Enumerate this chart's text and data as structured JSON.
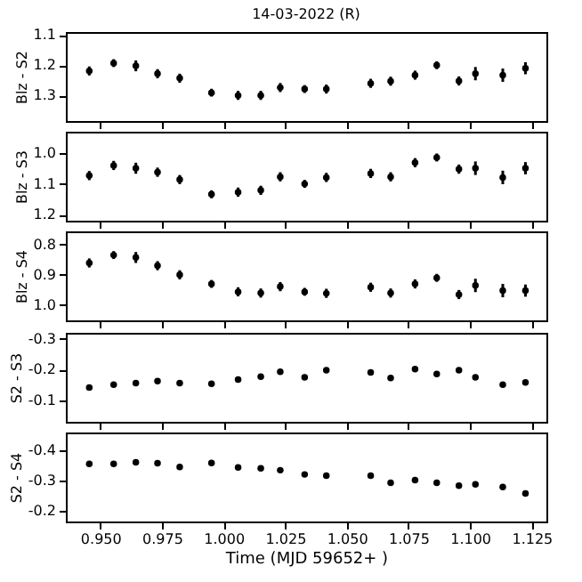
{
  "chart_data": [
    {
      "type": "scatter",
      "title": "14-03-2022  (R)",
      "ylabel": "Blz - S2",
      "marker": "circle",
      "grid": false,
      "tick_labels": "y",
      "x": [
        0.9455,
        0.9554,
        0.9644,
        0.9732,
        0.9822,
        0.9951,
        1.0059,
        1.0151,
        1.023,
        1.0329,
        1.0417,
        1.0597,
        1.0678,
        1.0777,
        1.0865,
        1.0955,
        1.1022,
        1.1133,
        1.1225
      ],
      "xlim": [
        0.936,
        1.131
      ],
      "xticks": [
        {
          "value": 0.95,
          "label": null
        },
        {
          "value": 0.975,
          "label": null
        },
        {
          "value": 1.0,
          "label": null
        },
        {
          "value": 1.025,
          "label": null
        },
        {
          "value": 1.05,
          "label": null
        },
        {
          "value": 1.075,
          "label": null
        },
        {
          "value": 1.1,
          "label": null
        },
        {
          "value": 1.125,
          "label": null
        }
      ],
      "ylim": [
        1.385,
        1.09
      ],
      "yticks": [
        1.1,
        1.2,
        1.3
      ],
      "series": [
        {
          "color": "#000000",
          "values": [
            1.219,
            1.193,
            1.202,
            1.228,
            1.243,
            1.291,
            1.3,
            1.3,
            1.274,
            1.279,
            1.279,
            1.26,
            1.253,
            1.233,
            1.2,
            1.252,
            1.228,
            1.233,
            1.21
          ],
          "errors": [
            0.015,
            0.013,
            0.018,
            0.015,
            0.015,
            0.013,
            0.015,
            0.015,
            0.015,
            0.013,
            0.015,
            0.015,
            0.015,
            0.015,
            0.013,
            0.015,
            0.022,
            0.022,
            0.02
          ]
        }
      ]
    },
    {
      "type": "scatter",
      "ylabel": "Blz - S3",
      "marker": "circle",
      "grid": false,
      "tick_labels": "y",
      "x": [
        0.9455,
        0.9554,
        0.9644,
        0.9732,
        0.9822,
        0.9951,
        1.0059,
        1.0151,
        1.023,
        1.0329,
        1.0417,
        1.0597,
        1.0678,
        1.0777,
        1.0865,
        1.0955,
        1.1022,
        1.1133,
        1.1225
      ],
      "xlim": [
        0.936,
        1.131
      ],
      "xticks": [
        {
          "value": 0.95,
          "label": null
        },
        {
          "value": 0.975,
          "label": null
        },
        {
          "value": 1.0,
          "label": null
        },
        {
          "value": 1.025,
          "label": null
        },
        {
          "value": 1.05,
          "label": null
        },
        {
          "value": 1.075,
          "label": null
        },
        {
          "value": 1.1,
          "label": null
        },
        {
          "value": 1.125,
          "label": null
        }
      ],
      "ylim": [
        1.22,
        0.93
      ],
      "yticks": [
        {
          "value": 1.0,
          "label": "1.0"
        },
        1.1,
        1.2
      ],
      "series": [
        {
          "color": "#000000",
          "values": [
            1.073,
            1.04,
            1.049,
            1.062,
            1.086,
            1.134,
            1.127,
            1.121,
            1.077,
            1.1,
            1.079,
            1.066,
            1.077,
            1.031,
            1.014,
            1.052,
            1.049,
            1.079,
            1.049
          ],
          "errors": [
            0.015,
            0.015,
            0.018,
            0.015,
            0.015,
            0.013,
            0.015,
            0.015,
            0.015,
            0.013,
            0.015,
            0.015,
            0.015,
            0.015,
            0.013,
            0.015,
            0.022,
            0.022,
            0.02
          ]
        }
      ]
    },
    {
      "type": "scatter",
      "ylabel": "Blz - S4",
      "marker": "circle",
      "grid": false,
      "tick_labels": "y",
      "x": [
        0.9455,
        0.9554,
        0.9644,
        0.9732,
        0.9822,
        0.9951,
        1.0059,
        1.0151,
        1.023,
        1.0329,
        1.0417,
        1.0597,
        1.0678,
        1.0777,
        1.0865,
        1.0955,
        1.1022,
        1.1133,
        1.1225
      ],
      "xlim": [
        0.936,
        1.131
      ],
      "xticks": [
        {
          "value": 0.95,
          "label": null
        },
        {
          "value": 0.975,
          "label": null
        },
        {
          "value": 1.0,
          "label": null
        },
        {
          "value": 1.025,
          "label": null
        },
        {
          "value": 1.05,
          "label": null
        },
        {
          "value": 1.075,
          "label": null
        },
        {
          "value": 1.1,
          "label": null
        },
        {
          "value": 1.125,
          "label": null
        }
      ],
      "ylim": [
        1.05,
        0.757
      ],
      "yticks": [
        0.8,
        0.9,
        {
          "value": 1.0,
          "label": "1.0"
        }
      ],
      "series": [
        {
          "color": "#000000",
          "values": [
            0.861,
            0.835,
            0.843,
            0.87,
            0.9,
            0.93,
            0.956,
            0.96,
            0.939,
            0.956,
            0.961,
            0.941,
            0.96,
            0.93,
            0.91,
            0.965,
            0.935,
            0.952,
            0.952
          ],
          "errors": [
            0.015,
            0.013,
            0.018,
            0.015,
            0.015,
            0.013,
            0.015,
            0.015,
            0.015,
            0.013,
            0.015,
            0.015,
            0.015,
            0.015,
            0.013,
            0.015,
            0.022,
            0.022,
            0.02
          ]
        }
      ]
    },
    {
      "type": "scatter",
      "ylabel": "S2 - S3",
      "marker": "circle",
      "grid": false,
      "tick_labels": "y",
      "x": [
        0.9455,
        0.9554,
        0.9644,
        0.9732,
        0.9822,
        0.9951,
        1.0059,
        1.0151,
        1.023,
        1.0329,
        1.0417,
        1.0597,
        1.0678,
        1.0777,
        1.0865,
        1.0955,
        1.1022,
        1.1133,
        1.1225
      ],
      "xlim": [
        0.936,
        1.131
      ],
      "xticks": [
        {
          "value": 0.95,
          "label": null
        },
        {
          "value": 0.975,
          "label": null
        },
        {
          "value": 1.0,
          "label": null
        },
        {
          "value": 1.025,
          "label": null
        },
        {
          "value": 1.05,
          "label": null
        },
        {
          "value": 1.075,
          "label": null
        },
        {
          "value": 1.1,
          "label": null
        },
        {
          "value": 1.125,
          "label": null
        }
      ],
      "ylim": [
        -0.03,
        -0.32
      ],
      "yticks": [
        -0.3,
        -0.2,
        -0.1
      ],
      "series": [
        {
          "color": "#000000",
          "values": [
            -0.142,
            -0.151,
            -0.156,
            -0.163,
            -0.156,
            -0.154,
            -0.168,
            -0.177,
            -0.193,
            -0.175,
            -0.198,
            -0.191,
            -0.173,
            -0.202,
            -0.186,
            -0.198,
            -0.175,
            -0.151,
            -0.158
          ],
          "errors": [
            0.005,
            0.005,
            0.005,
            0.005,
            0.005,
            0.005,
            0.005,
            0.005,
            0.005,
            0.005,
            0.005,
            0.005,
            0.005,
            0.005,
            0.005,
            0.005,
            0.008,
            0.008,
            0.008
          ]
        }
      ]
    },
    {
      "type": "scatter",
      "ylabel": "S2 - S4",
      "xlabel": "Time (MJD 59652+ )",
      "marker": "circle",
      "grid": false,
      "x": [
        0.9455,
        0.9554,
        0.9644,
        0.9732,
        0.9822,
        0.9951,
        1.0059,
        1.0151,
        1.023,
        1.0329,
        1.0417,
        1.0597,
        1.0678,
        1.0777,
        1.0865,
        1.0955,
        1.1022,
        1.1133,
        1.1225
      ],
      "xlim": [
        0.936,
        1.131
      ],
      "xticks": [
        {
          "value": 0.95,
          "label": "0.950"
        },
        {
          "value": 0.975,
          "label": "0.975"
        },
        {
          "value": 1.0,
          "label": "1.000"
        },
        {
          "value": 1.025,
          "label": "1.025"
        },
        {
          "value": 1.05,
          "label": "1.050"
        },
        {
          "value": 1.075,
          "label": "1.075"
        },
        {
          "value": 1.1,
          "label": "1.100"
        },
        {
          "value": 1.125,
          "label": "1.125"
        }
      ],
      "ylim": [
        -0.165,
        -0.46
      ],
      "yticks": [
        -0.4,
        -0.3,
        -0.2
      ],
      "series": [
        {
          "color": "#000000",
          "values": [
            -0.356,
            -0.356,
            -0.361,
            -0.358,
            -0.346,
            -0.359,
            -0.344,
            -0.341,
            -0.335,
            -0.321,
            -0.317,
            -0.317,
            -0.293,
            -0.302,
            -0.293,
            -0.284,
            -0.288,
            -0.279,
            -0.258
          ],
          "errors": [
            0.005,
            0.005,
            0.005,
            0.005,
            0.005,
            0.005,
            0.005,
            0.005,
            0.005,
            0.005,
            0.005,
            0.005,
            0.005,
            0.005,
            0.005,
            0.005,
            0.008,
            0.008,
            0.008
          ]
        }
      ]
    }
  ]
}
